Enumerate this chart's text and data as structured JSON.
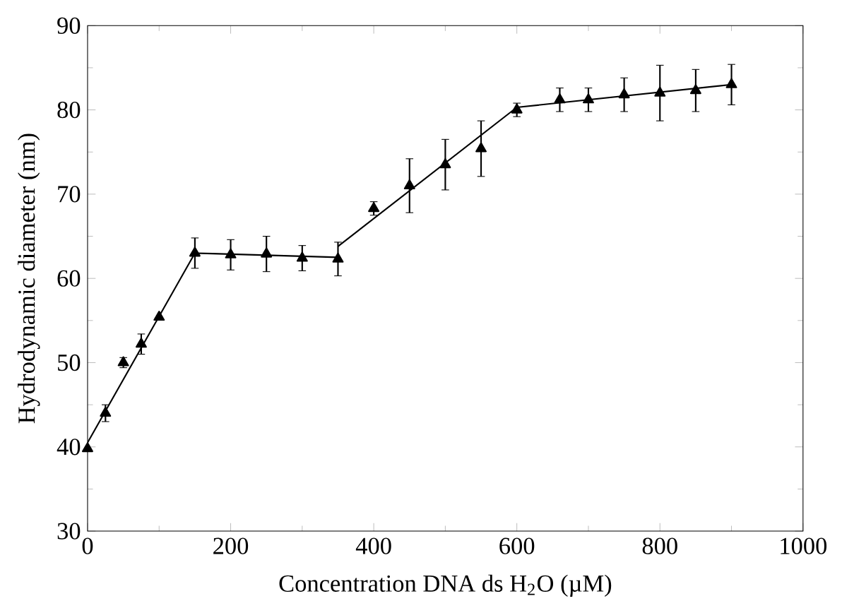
{
  "chart_data": {
    "type": "scatter",
    "xlabel": "Concentration DNA ds H$_{2}$O (µM)",
    "ylabel": "Hydrodynamic diameter (nm)",
    "xlim": [
      0,
      1000
    ],
    "xticks": [
      0,
      200,
      400,
      600,
      800,
      1000
    ],
    "ylim": [
      30,
      90
    ],
    "yticks": [
      30,
      40,
      50,
      60,
      70,
      80,
      90
    ],
    "grid": false,
    "marker": "triangle",
    "series": [
      {
        "color": "#000000",
        "x": [
          0,
          25,
          50,
          75,
          100,
          150,
          200,
          250,
          300,
          350,
          400,
          450,
          500,
          550,
          600,
          660,
          700,
          750,
          800,
          850,
          900
        ],
        "values": [
          39.8,
          44,
          50,
          52.2,
          55.4,
          63,
          62.8,
          62.9,
          62.4,
          62.3,
          68.3,
          71,
          73.5,
          75.4,
          80,
          81.2,
          81.2,
          81.8,
          82,
          82.3,
          83
        ],
        "errors": [
          null,
          1,
          0.6,
          1.2,
          null,
          1.8,
          1.8,
          2.1,
          1.5,
          2,
          0.8,
          3.2,
          3,
          3.3,
          0.8,
          1.4,
          1.4,
          2,
          3.3,
          2.5,
          2.4
        ]
      },
      {
        "type": "line",
        "color": "#000000",
        "marker": "none",
        "x": [
          0,
          150,
          350
        ],
        "values": [
          40.5,
          63,
          62.5
        ]
      },
      {
        "type": "line",
        "color": "#000000",
        "marker": "none",
        "x": [
          350,
          600,
          900
        ],
        "values": [
          63.8,
          80.3,
          83
        ]
      }
    ]
  }
}
